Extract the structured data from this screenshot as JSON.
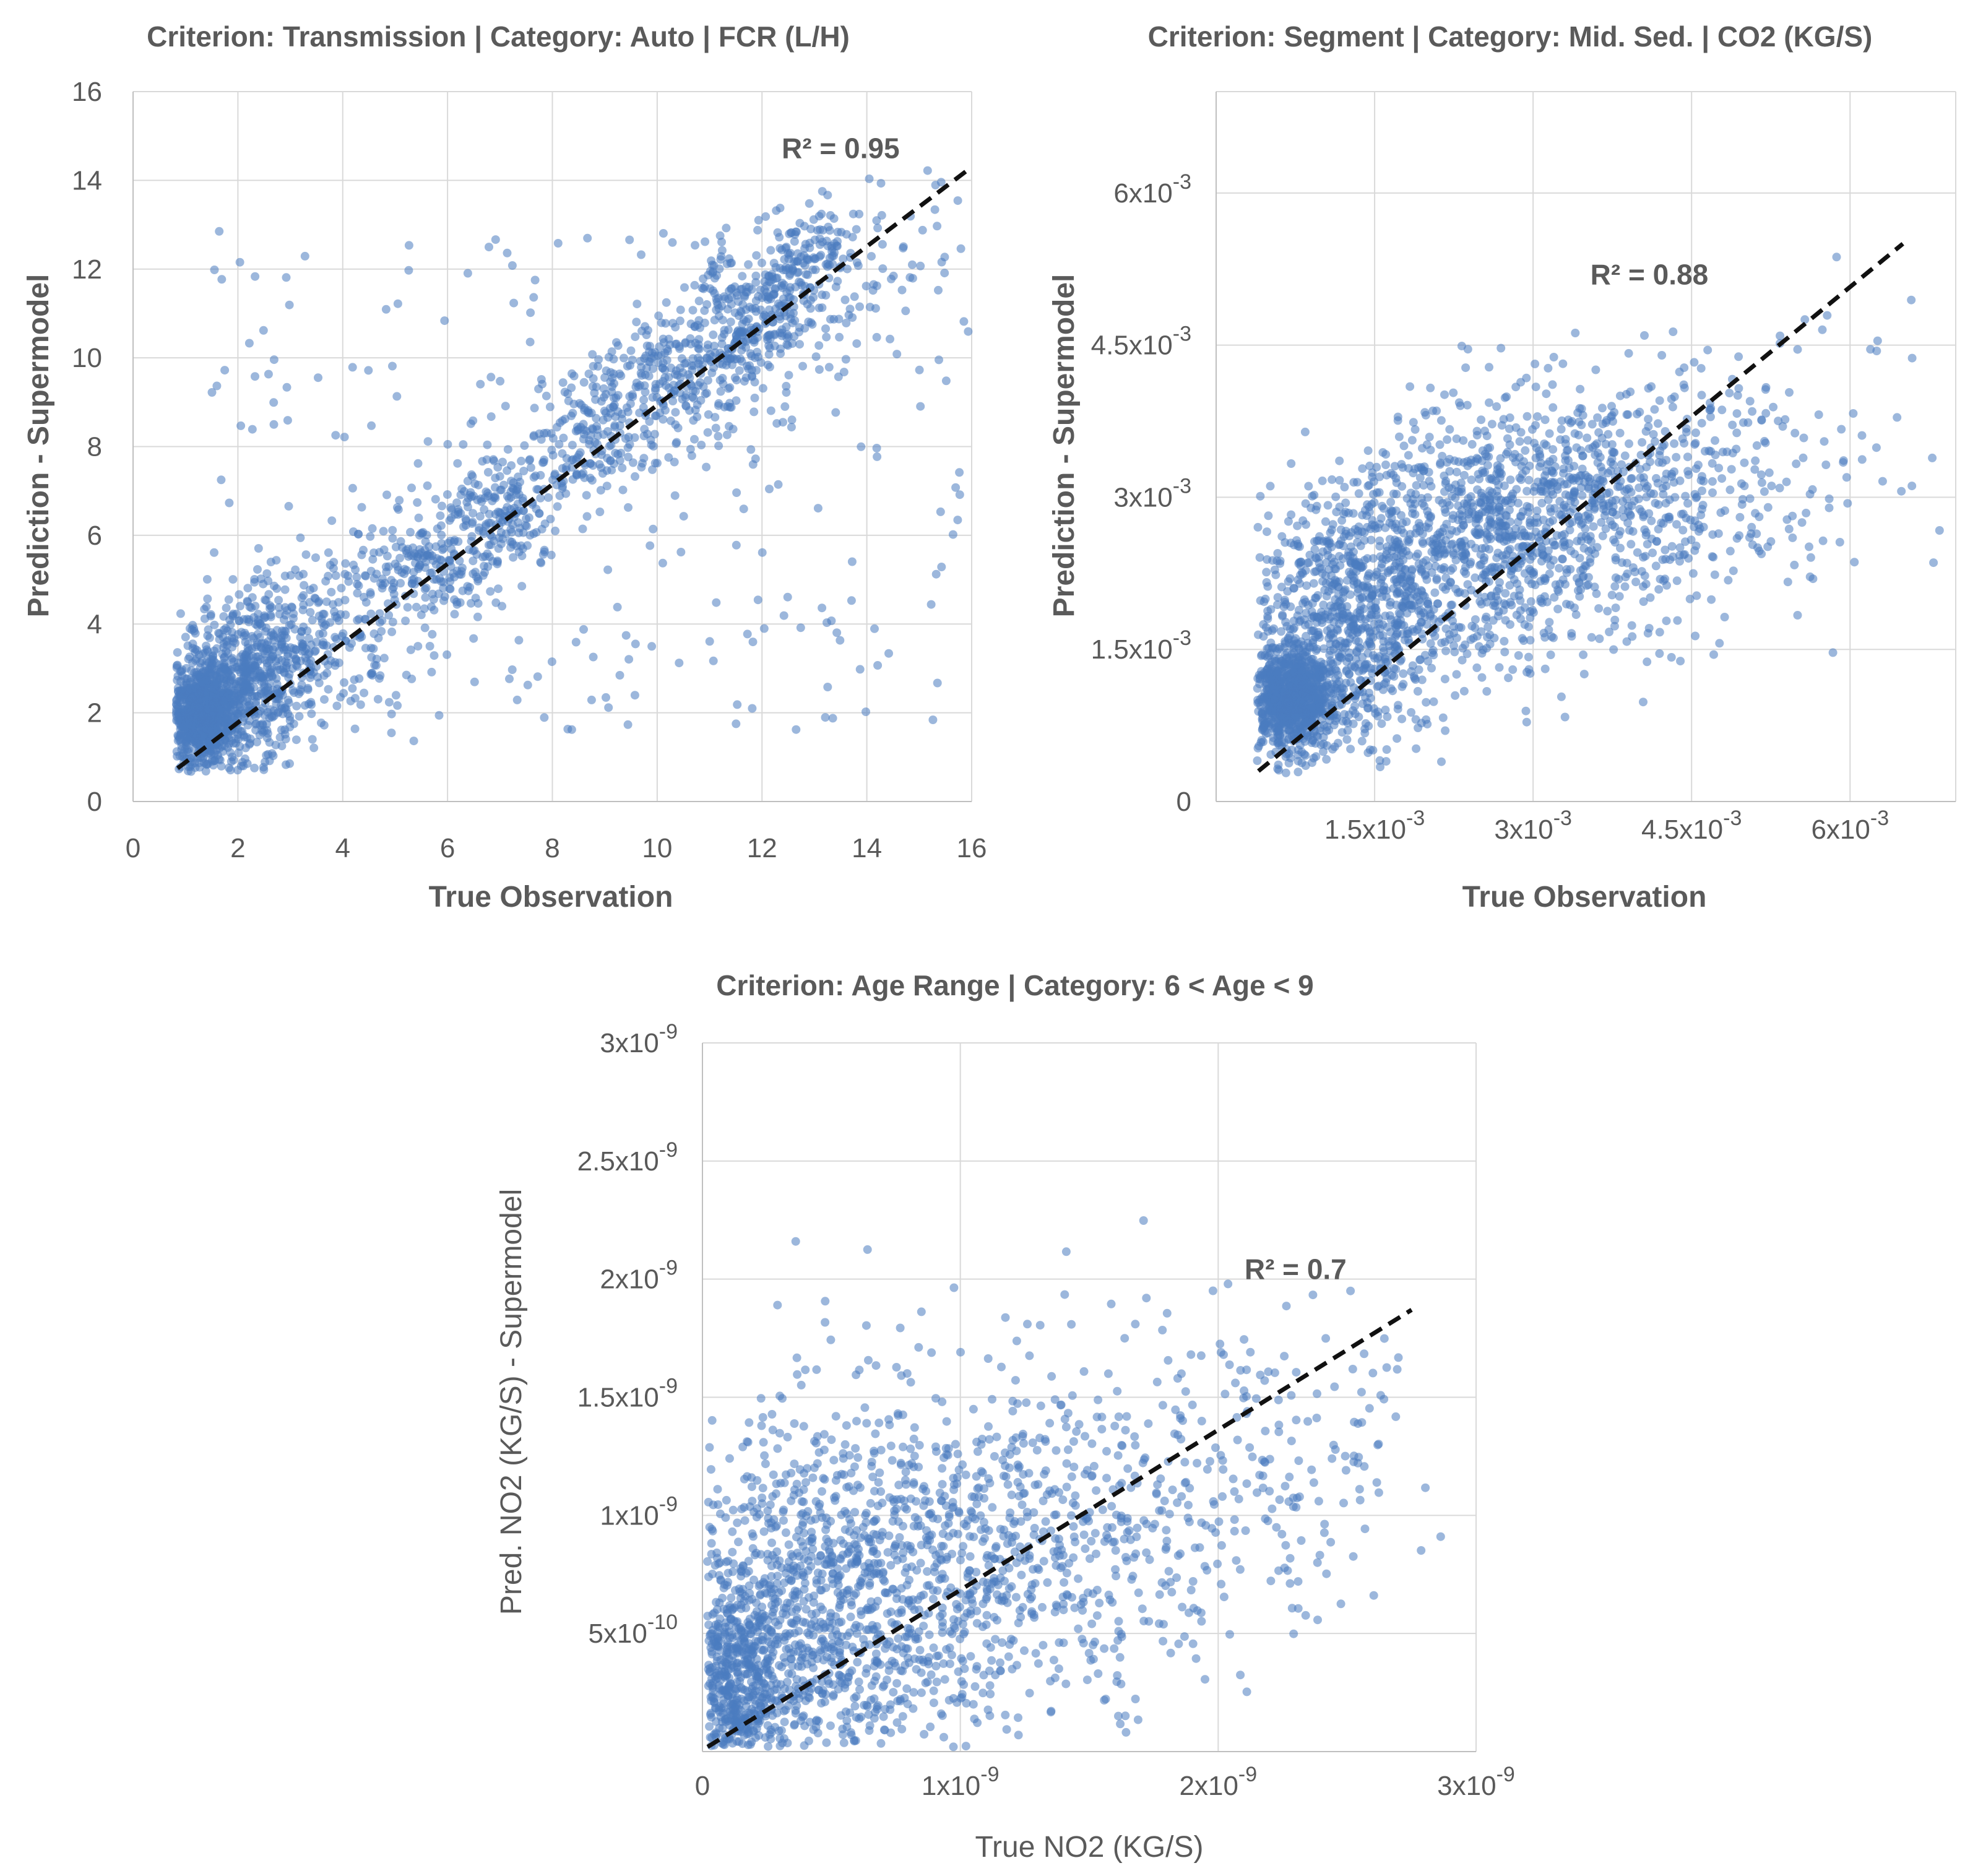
{
  "chart_data": [
    {
      "type": "scatter",
      "title": "Criterion: Transmission | Category: Auto | FCR (L/H)",
      "xlabel": "True Observation",
      "ylabel": "Prediction - Supermodel",
      "xlim": [
        0,
        16
      ],
      "ylim": [
        0,
        16
      ],
      "x_ticks": [
        {
          "label": "0"
        },
        {
          "label": "2"
        },
        {
          "label": "4"
        },
        {
          "label": "6"
        },
        {
          "label": "8"
        },
        {
          "label": "10"
        },
        {
          "label": "12"
        },
        {
          "label": "14"
        },
        {
          "label": "16"
        }
      ],
      "x_tick_values": [
        0,
        2,
        4,
        6,
        8,
        10,
        12,
        14,
        16
      ],
      "y_ticks": [
        {
          "label": "0"
        },
        {
          "label": "2"
        },
        {
          "label": "4"
        },
        {
          "label": "6"
        },
        {
          "label": "8"
        },
        {
          "label": "10"
        },
        {
          "label": "12"
        },
        {
          "label": "14"
        },
        {
          "label": "16"
        }
      ],
      "y_tick_values": [
        0,
        2,
        4,
        6,
        8,
        10,
        12,
        14,
        16
      ],
      "grid": true,
      "r2_label": "R² = 0.95",
      "r2_anchor": [
        13.5,
        14.5
      ],
      "trendline": {
        "x": [
          0.85,
          16
        ],
        "y": [
          0.75,
          14.3
        ]
      },
      "point_clusters": [
        {
          "cx": 1.3,
          "cy": 2.0,
          "sx": 0.35,
          "sy": 0.6,
          "n": 900
        },
        {
          "cx": 2.2,
          "cy": 2.8,
          "sx": 0.6,
          "sy": 1.0,
          "n": 500
        },
        {
          "cx": 3.5,
          "cy": 3.5,
          "sx": 0.9,
          "sy": 0.9,
          "n": 220
        },
        {
          "cx": 5.5,
          "cy": 5.3,
          "sx": 0.8,
          "sy": 0.6,
          "n": 220
        },
        {
          "cx": 7.0,
          "cy": 6.6,
          "sx": 0.6,
          "sy": 0.7,
          "n": 180
        },
        {
          "cx": 8.8,
          "cy": 8.3,
          "sx": 0.6,
          "sy": 0.8,
          "n": 180
        },
        {
          "cx": 10.3,
          "cy": 9.6,
          "sx": 0.6,
          "sy": 0.8,
          "n": 220
        },
        {
          "cx": 11.6,
          "cy": 10.9,
          "sx": 0.5,
          "sy": 0.8,
          "n": 220
        },
        {
          "cx": 12.6,
          "cy": 11.6,
          "sx": 0.4,
          "sy": 0.8,
          "n": 140
        },
        {
          "cx": 13.4,
          "cy": 12.2,
          "sx": 0.35,
          "sy": 0.7,
          "n": 60
        },
        {
          "cx": 14.8,
          "cy": 12.5,
          "sx": 0.6,
          "sy": 1.0,
          "n": 30
        }
      ],
      "scatter_outliers": [
        {
          "x": [
            1.5,
            16
          ],
          "y": [
            1.5,
            13
          ],
          "n": 260
        }
      ]
    },
    {
      "type": "scatter",
      "title": "Criterion: Segment | Category: Mid. Sed. | CO2 (KG/S)",
      "xlabel": "True Observation",
      "ylabel": "Prediction - Supermodel",
      "xlim": [
        0,
        0.007
      ],
      "ylim": [
        0,
        0.007
      ],
      "x_ticks": [
        {
          "base": "1.5x10",
          "exp": "-3"
        },
        {
          "base": "3x10",
          "exp": "-3"
        },
        {
          "base": "4.5x10",
          "exp": "-3"
        },
        {
          "base": "6x10",
          "exp": "-3"
        }
      ],
      "x_tick_values": [
        0.0015,
        0.003,
        0.0045,
        0.006
      ],
      "y_ticks": [
        {
          "base": "0",
          "exp": ""
        },
        {
          "base": "1.5x10",
          "exp": "-3"
        },
        {
          "base": "3x10",
          "exp": "-3"
        },
        {
          "base": "4.5x10",
          "exp": "-3"
        },
        {
          "base": "6x10",
          "exp": "-3"
        }
      ],
      "y_tick_values": [
        0,
        0.0015,
        0.003,
        0.0045,
        0.006
      ],
      "grid": true,
      "r2_label": "R² = 0.88",
      "r2_anchor": [
        0.0041,
        0.0051
      ],
      "trendline": {
        "x": [
          0.0004,
          0.0065
        ],
        "y": [
          0.0003,
          0.0055
        ]
      },
      "point_clusters": [
        {
          "cx": 0.0007,
          "cy": 0.001,
          "sx": 0.0002,
          "sy": 0.00025,
          "n": 900
        },
        {
          "cx": 0.0012,
          "cy": 0.0017,
          "sx": 0.0005,
          "sy": 0.0006,
          "n": 700
        },
        {
          "cx": 0.0022,
          "cy": 0.0025,
          "sx": 0.0007,
          "sy": 0.0006,
          "n": 700
        },
        {
          "cx": 0.0033,
          "cy": 0.0029,
          "sx": 0.0007,
          "sy": 0.0006,
          "n": 600
        },
        {
          "cx": 0.0045,
          "cy": 0.0031,
          "sx": 0.0006,
          "sy": 0.0006,
          "n": 200
        },
        {
          "cx": 0.0056,
          "cy": 0.0032,
          "sx": 0.0005,
          "sy": 0.0007,
          "n": 50
        }
      ],
      "scatter_outliers": [
        {
          "x": [
            0.0056,
            0.0066
          ],
          "y": [
            0.0043,
            0.0054
          ],
          "n": 6
        }
      ]
    },
    {
      "type": "scatter",
      "title": "Criterion: Age Range | Category: 6 < Age < 9",
      "xlabel": "True NO2 (KG/S)",
      "ylabel": "Pred. NO2 (KG/S) - Supermodel",
      "xlim": [
        0,
        3e-09
      ],
      "ylim": [
        0,
        3e-09
      ],
      "x_ticks": [
        {
          "base": "0",
          "exp": ""
        },
        {
          "base": "1x10",
          "exp": "-9"
        },
        {
          "base": "2x10",
          "exp": "-9"
        },
        {
          "base": "3x10",
          "exp": "-9"
        }
      ],
      "x_tick_values": [
        0,
        1e-09,
        2e-09,
        3e-09
      ],
      "y_ticks": [
        {
          "base": "5x10",
          "exp": "-10"
        },
        {
          "base": "1x10",
          "exp": "-9"
        },
        {
          "base": "1.5x10",
          "exp": "-9"
        },
        {
          "base": "2x10",
          "exp": "-9"
        },
        {
          "base": "2.5x10",
          "exp": "-9"
        },
        {
          "base": "3x10",
          "exp": "-9"
        }
      ],
      "y_tick_values": [
        5e-10,
        1e-09,
        1.5e-09,
        2e-09,
        2.5e-09,
        3e-09
      ],
      "grid": true,
      "r2_label": "R² = 0.7",
      "r2_anchor": [
        2.3e-09,
        2e-09
      ],
      "trendline": {
        "x": [
          2e-11,
          2.75e-09
        ],
        "y": [
          2e-11,
          1.87e-09
        ]
      },
      "point_clusters": [
        {
          "cx": 1e-10,
          "cy": 2.5e-10,
          "sx": 1.2e-10,
          "sy": 2.5e-10,
          "n": 700
        },
        {
          "cx": 4e-10,
          "cy": 5.5e-10,
          "sx": 3e-10,
          "sy": 4e-10,
          "n": 900
        },
        {
          "cx": 9e-10,
          "cy": 8e-10,
          "sx": 3.5e-10,
          "sy": 4e-10,
          "n": 600
        },
        {
          "cx": 1.5e-09,
          "cy": 9.5e-10,
          "sx": 3.5e-10,
          "sy": 4e-10,
          "n": 300
        },
        {
          "cx": 2.1e-09,
          "cy": 1.15e-09,
          "sx": 3e-10,
          "sy": 3.5e-10,
          "n": 130
        },
        {
          "cx": 2.5e-09,
          "cy": 1.35e-09,
          "sx": 1.5e-10,
          "sy": 2.5e-10,
          "n": 40
        }
      ],
      "scatter_outliers": []
    }
  ],
  "style": {
    "point_color": "#4a7cc0",
    "trend_color": "#111111",
    "grid_color": "#d9d9d9",
    "text_color": "#5a5a5a"
  }
}
